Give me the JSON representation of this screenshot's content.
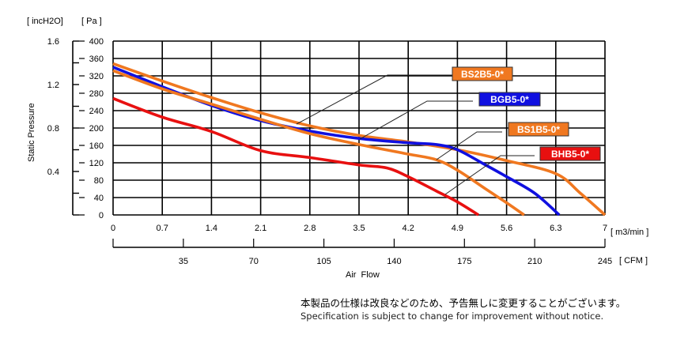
{
  "chart_data": {
    "type": "line",
    "title": "",
    "xlabel": "Air  Flow",
    "ylabel": "Static Pressure",
    "x_unit": "[ m3/min ]",
    "x2_unit": "[ CFM ]",
    "y_unit": "[ Pa ]",
    "y2_unit": "[ incH2O]",
    "xlim": [
      0,
      7
    ],
    "ylim": [
      0,
      400
    ],
    "x2lim": [
      0,
      245
    ],
    "y2lim": [
      0,
      1.6
    ],
    "grid": true,
    "x_ticks": [
      "0",
      "0.7",
      "1.4",
      "2.1",
      "2.8",
      "3.5",
      "4.2",
      "4.9",
      "5.6",
      "6.3",
      "7"
    ],
    "x2_ticks": [
      "35",
      "70",
      "105",
      "140",
      "175",
      "210",
      "245"
    ],
    "y_ticks": [
      "0",
      "40",
      "80",
      "120",
      "160",
      "200",
      "240",
      "280",
      "320",
      "360",
      "400"
    ],
    "y2_ticks": [
      "0.4",
      "0.8",
      "1.2",
      "1.6"
    ],
    "series": [
      {
        "name": "BS2B5-0*",
        "color": "#f07820",
        "text_color": "#ffffff",
        "x": [
          0,
          0.7,
          1.4,
          2.1,
          2.8,
          3.5,
          4.2,
          4.9,
          5.6,
          6.3,
          6.65,
          7
        ],
        "y": [
          348,
          308,
          270,
          235,
          205,
          183,
          168,
          150,
          125,
          95,
          50,
          0
        ]
      },
      {
        "name": "BGB5-0*",
        "color": "#1010e0",
        "text_color": "#ffffff",
        "x": [
          0,
          0.7,
          1.4,
          2.1,
          2.8,
          3.5,
          4.2,
          4.6,
          4.9,
          5.3,
          5.6,
          6.0,
          6.35
        ],
        "y": [
          340,
          295,
          252,
          217,
          193,
          176,
          166,
          162,
          150,
          115,
          88,
          50,
          0
        ]
      },
      {
        "name": "BS1B5-0*",
        "color": "#f07820",
        "text_color": "#ffffff",
        "x": [
          0,
          0.7,
          1.4,
          2.1,
          2.8,
          3.5,
          4.2,
          4.6,
          4.9,
          5.3,
          5.6,
          5.85
        ],
        "y": [
          332,
          290,
          255,
          220,
          187,
          162,
          140,
          127,
          103,
          60,
          28,
          0
        ]
      },
      {
        "name": "BHB5-0*",
        "color": "#e81010",
        "text_color": "#ffffff",
        "x": [
          0,
          0.7,
          1.4,
          2.1,
          2.8,
          3.5,
          3.9,
          4.2,
          4.6,
          4.9,
          5.2
        ],
        "y": [
          268,
          225,
          192,
          148,
          132,
          115,
          108,
          88,
          55,
          30,
          0
        ]
      }
    ]
  },
  "notes": {
    "jp": "本製品の仕様は改良などのため、予告無しに変更することがございます。",
    "en": "Specification is subject to change for improvement without notice."
  }
}
